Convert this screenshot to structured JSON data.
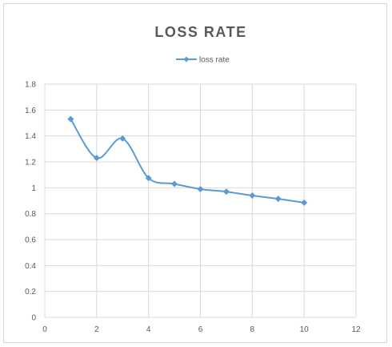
{
  "chart_data": {
    "type": "line",
    "title": "LOSS RATE",
    "xlabel": "",
    "ylabel": "",
    "xlim": [
      0,
      12
    ],
    "ylim": [
      0,
      1.8
    ],
    "x_ticks": [
      0,
      2,
      4,
      6,
      8,
      10,
      12
    ],
    "y_ticks": [
      0,
      0.2,
      0.4,
      0.6,
      0.8,
      1,
      1.2,
      1.4,
      1.6,
      1.8
    ],
    "grid": true,
    "legend_position": "top",
    "smooth": true,
    "series": [
      {
        "name": "loss rate",
        "color": "#5b9bd5",
        "marker": "diamond",
        "x": [
          1,
          2,
          3,
          4,
          5,
          6,
          7,
          8,
          9,
          10
        ],
        "y": [
          1.53,
          1.23,
          1.38,
          1.075,
          1.03,
          0.99,
          0.97,
          0.94,
          0.915,
          0.885
        ]
      }
    ]
  }
}
